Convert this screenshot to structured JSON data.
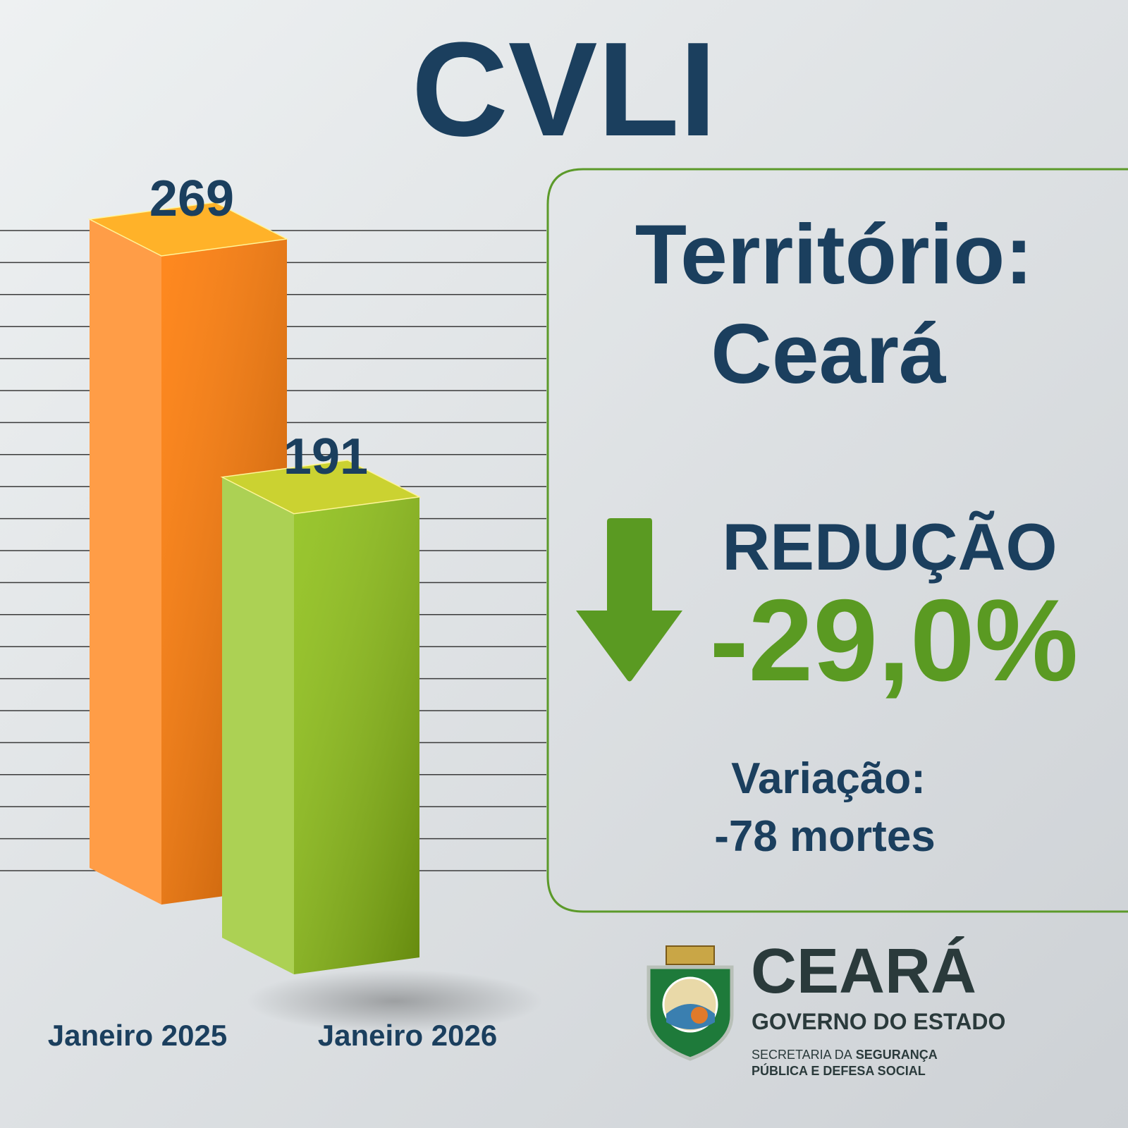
{
  "chart_data": {
    "type": "bar3d",
    "title": "CVLI",
    "categories": [
      "Janeiro 2025",
      "Janeiro 2026"
    ],
    "values": [
      269,
      191
    ],
    "colors": [
      "#ff7800",
      "#8cbf12"
    ]
  },
  "panel": {
    "territory_label": "Território:",
    "territory": "Ceará",
    "trend": "REDUÇÃO",
    "change": "-29,0%",
    "variation_label": "Variação:",
    "variation": "-78 mortes"
  },
  "logo": {
    "name": "CEARÁ",
    "subtitle": "GOVERNO DO ESTADO",
    "dept_prefix": "SECRETARIA DA",
    "dept_bold": "SEGURANÇA",
    "dept_line2": "PÚBLICA E DEFESA SOCIAL"
  }
}
